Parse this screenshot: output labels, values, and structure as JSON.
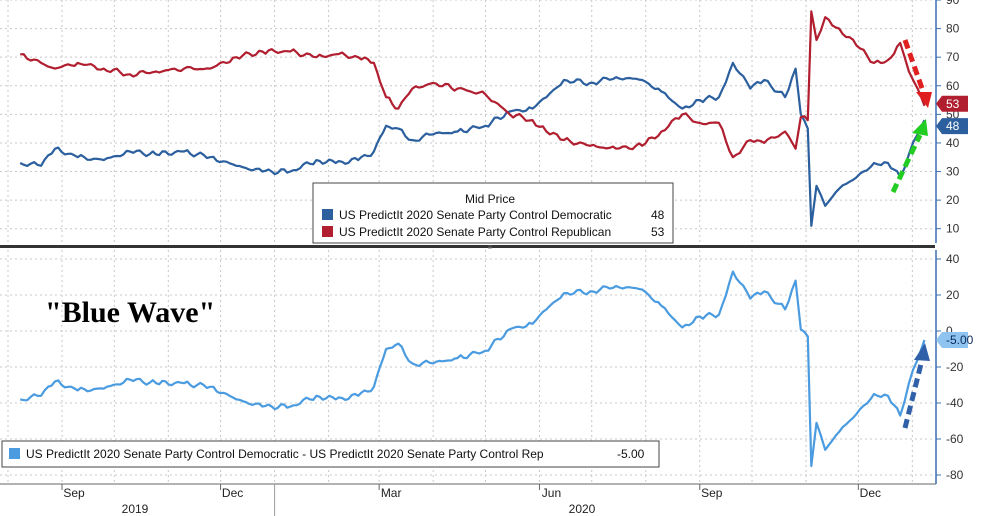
{
  "chart_data": [
    {
      "type": "line",
      "title": "",
      "legend_title": "Mid Price",
      "legend_position": "bottom-center",
      "grid": true,
      "ylim": [
        5,
        90
      ],
      "yticks": [
        "10",
        "20",
        "30",
        "40",
        "50",
        "60",
        "70",
        "80",
        "90"
      ],
      "x_months": [
        "2019-08",
        "2019-09",
        "2019-10",
        "2019-11",
        "2019-12",
        "2020-01",
        "2020-02",
        "2020-03",
        "2020-04",
        "2020-05",
        "2020-06",
        "2020-07",
        "2020-08",
        "2020-09",
        "2020-10",
        "2020-11",
        "2020-12",
        "2021-01"
      ],
      "series": [
        {
          "name": "US PredictIt 2020 Senate Party Control Democratic",
          "last_label": "48",
          "color": "#2b5f9e",
          "last_value": 48,
          "values": [
            [
              "2019-08-08",
              33
            ],
            [
              "2019-08-20",
              32
            ],
            [
              "2019-08-28",
              38
            ],
            [
              "2019-09-10",
              35
            ],
            [
              "2019-09-25",
              34
            ],
            [
              "2019-10-10",
              37
            ],
            [
              "2019-10-25",
              36
            ],
            [
              "2019-11-10",
              37
            ],
            [
              "2019-11-25",
              35
            ],
            [
              "2019-12-10",
              32
            ],
            [
              "2019-12-25",
              30
            ],
            [
              "2020-01-10",
              30
            ],
            [
              "2020-01-25",
              34
            ],
            [
              "2020-02-05",
              33
            ],
            [
              "2020-02-18",
              34
            ],
            [
              "2020-02-27",
              37
            ],
            [
              "2020-03-05",
              46
            ],
            [
              "2020-03-12",
              45
            ],
            [
              "2020-03-20",
              41
            ],
            [
              "2020-04-01",
              43
            ],
            [
              "2020-04-15",
              44
            ],
            [
              "2020-05-01",
              46
            ],
            [
              "2020-05-15",
              51
            ],
            [
              "2020-05-28",
              52
            ],
            [
              "2020-06-05",
              56
            ],
            [
              "2020-06-15",
              62
            ],
            [
              "2020-06-30",
              61
            ],
            [
              "2020-07-15",
              63
            ],
            [
              "2020-07-30",
              62
            ],
            [
              "2020-08-10",
              58
            ],
            [
              "2020-08-22",
              52
            ],
            [
              "2020-09-01",
              55
            ],
            [
              "2020-09-12",
              56
            ],
            [
              "2020-09-20",
              68
            ],
            [
              "2020-09-30",
              59
            ],
            [
              "2020-10-08",
              62
            ],
            [
              "2020-10-20",
              56
            ],
            [
              "2020-10-26",
              66
            ],
            [
              "2020-10-29",
              50
            ],
            [
              "2020-11-02",
              45
            ],
            [
              "2020-11-04",
              11
            ],
            [
              "2020-11-07",
              25
            ],
            [
              "2020-11-12",
              18
            ],
            [
              "2020-11-20",
              24
            ],
            [
              "2020-11-30",
              28
            ],
            [
              "2020-12-10",
              33
            ],
            [
              "2020-12-18",
              33
            ],
            [
              "2020-12-25",
              28
            ],
            [
              "2020-12-30",
              36
            ],
            [
              "2021-01-04",
              43
            ],
            [
              "2021-01-08",
              48
            ]
          ]
        },
        {
          "name": "US PredictIt 2020 Senate Party Control Republican",
          "last_label": "53",
          "color": "#b01e2f",
          "last_value": 53,
          "values": [
            [
              "2019-08-08",
              71
            ],
            [
              "2019-08-20",
              68
            ],
            [
              "2019-08-28",
              66
            ],
            [
              "2019-09-10",
              68
            ],
            [
              "2019-09-25",
              66
            ],
            [
              "2019-10-10",
              64
            ],
            [
              "2019-10-25",
              65
            ],
            [
              "2019-11-10",
              66
            ],
            [
              "2019-11-25",
              66
            ],
            [
              "2019-12-10",
              70
            ],
            [
              "2019-12-25",
              72
            ],
            [
              "2020-01-10",
              72
            ],
            [
              "2020-01-25",
              70
            ],
            [
              "2020-02-05",
              71
            ],
            [
              "2020-02-18",
              70
            ],
            [
              "2020-02-27",
              68
            ],
            [
              "2020-03-05",
              56
            ],
            [
              "2020-03-12",
              52
            ],
            [
              "2020-03-20",
              59
            ],
            [
              "2020-04-01",
              61
            ],
            [
              "2020-04-15",
              59
            ],
            [
              "2020-05-01",
              57
            ],
            [
              "2020-05-15",
              50
            ],
            [
              "2020-05-28",
              48
            ],
            [
              "2020-06-05",
              44
            ],
            [
              "2020-06-15",
              41
            ],
            [
              "2020-06-30",
              39
            ],
            [
              "2020-07-15",
              38
            ],
            [
              "2020-07-30",
              39
            ],
            [
              "2020-08-10",
              44
            ],
            [
              "2020-08-22",
              50
            ],
            [
              "2020-09-01",
              47
            ],
            [
              "2020-09-12",
              47
            ],
            [
              "2020-09-20",
              35
            ],
            [
              "2020-09-30",
              41
            ],
            [
              "2020-10-08",
              40
            ],
            [
              "2020-10-20",
              44
            ],
            [
              "2020-10-26",
              38
            ],
            [
              "2020-10-29",
              49
            ],
            [
              "2020-11-02",
              48
            ],
            [
              "2020-11-04",
              86
            ],
            [
              "2020-11-07",
              76
            ],
            [
              "2020-11-12",
              84
            ],
            [
              "2020-11-20",
              80
            ],
            [
              "2020-11-30",
              74
            ],
            [
              "2020-12-10",
              68
            ],
            [
              "2020-12-18",
              69
            ],
            [
              "2020-12-25",
              75
            ],
            [
              "2020-12-30",
              65
            ],
            [
              "2021-01-04",
              59
            ],
            [
              "2021-01-08",
              53
            ]
          ]
        }
      ]
    },
    {
      "type": "line",
      "title": "\"Blue Wave\"",
      "legend_position": "bottom-left",
      "grid": true,
      "ylim": [
        -85,
        45
      ],
      "yticks": [
        "-80",
        "-60",
        "-40",
        "-20",
        "0",
        "20",
        "40"
      ],
      "x_months": [
        "2019-08",
        "2019-09",
        "2019-10",
        "2019-11",
        "2019-12",
        "2020-01",
        "2020-02",
        "2020-03",
        "2020-04",
        "2020-05",
        "2020-06",
        "2020-07",
        "2020-08",
        "2020-09",
        "2020-10",
        "2020-11",
        "2020-12",
        "2021-01"
      ],
      "x_tick_labels": [
        "Sep",
        "Dec",
        "Mar",
        "Jun",
        "Sep",
        "Dec"
      ],
      "x_year_labels": [
        "2019",
        "2020"
      ],
      "series": [
        {
          "name": "US PredictIt 2020 Senate Party Control Democratic - US PredictIt 2020 Senate Party Control Rep",
          "last_label": "-5.00",
          "color": "#4a9be0",
          "last_value": -5,
          "values": [
            [
              "2019-08-08",
              -38
            ],
            [
              "2019-08-20",
              -36
            ],
            [
              "2019-08-28",
              -28
            ],
            [
              "2019-09-10",
              -33
            ],
            [
              "2019-09-25",
              -32
            ],
            [
              "2019-10-10",
              -27
            ],
            [
              "2019-10-25",
              -29
            ],
            [
              "2019-11-10",
              -29
            ],
            [
              "2019-11-25",
              -31
            ],
            [
              "2019-12-10",
              -38
            ],
            [
              "2019-12-25",
              -42
            ],
            [
              "2020-01-10",
              -42
            ],
            [
              "2020-01-25",
              -36
            ],
            [
              "2020-02-05",
              -38
            ],
            [
              "2020-02-18",
              -36
            ],
            [
              "2020-02-27",
              -31
            ],
            [
              "2020-03-05",
              -10
            ],
            [
              "2020-03-12",
              -7
            ],
            [
              "2020-03-20",
              -18
            ],
            [
              "2020-04-01",
              -18
            ],
            [
              "2020-04-15",
              -15
            ],
            [
              "2020-05-01",
              -11
            ],
            [
              "2020-05-15",
              1
            ],
            [
              "2020-05-28",
              4
            ],
            [
              "2020-06-05",
              12
            ],
            [
              "2020-06-15",
              21
            ],
            [
              "2020-06-30",
              22
            ],
            [
              "2020-07-15",
              25
            ],
            [
              "2020-07-30",
              23
            ],
            [
              "2020-08-10",
              14
            ],
            [
              "2020-08-22",
              2
            ],
            [
              "2020-09-01",
              8
            ],
            [
              "2020-09-12",
              9
            ],
            [
              "2020-09-20",
              33
            ],
            [
              "2020-09-30",
              18
            ],
            [
              "2020-10-08",
              22
            ],
            [
              "2020-10-20",
              12
            ],
            [
              "2020-10-26",
              28
            ],
            [
              "2020-10-29",
              1
            ],
            [
              "2020-11-02",
              -3
            ],
            [
              "2020-11-04",
              -75
            ],
            [
              "2020-11-07",
              -51
            ],
            [
              "2020-11-12",
              -66
            ],
            [
              "2020-11-20",
              -56
            ],
            [
              "2020-11-30",
              -46
            ],
            [
              "2020-12-10",
              -35
            ],
            [
              "2020-12-18",
              -36
            ],
            [
              "2020-12-25",
              -47
            ],
            [
              "2020-12-30",
              -29
            ],
            [
              "2021-01-04",
              -16
            ],
            [
              "2021-01-08",
              -5
            ]
          ]
        }
      ]
    }
  ],
  "colors": {
    "democratic": "#2b5f9e",
    "republican": "#b01e2f",
    "spread": "#4a9be0",
    "arrow_red": "#e02020",
    "arrow_green": "#22cc22",
    "arrow_blue": "#3060a8",
    "grid": "#c8c8c8",
    "axis": "#3a6fb0"
  }
}
